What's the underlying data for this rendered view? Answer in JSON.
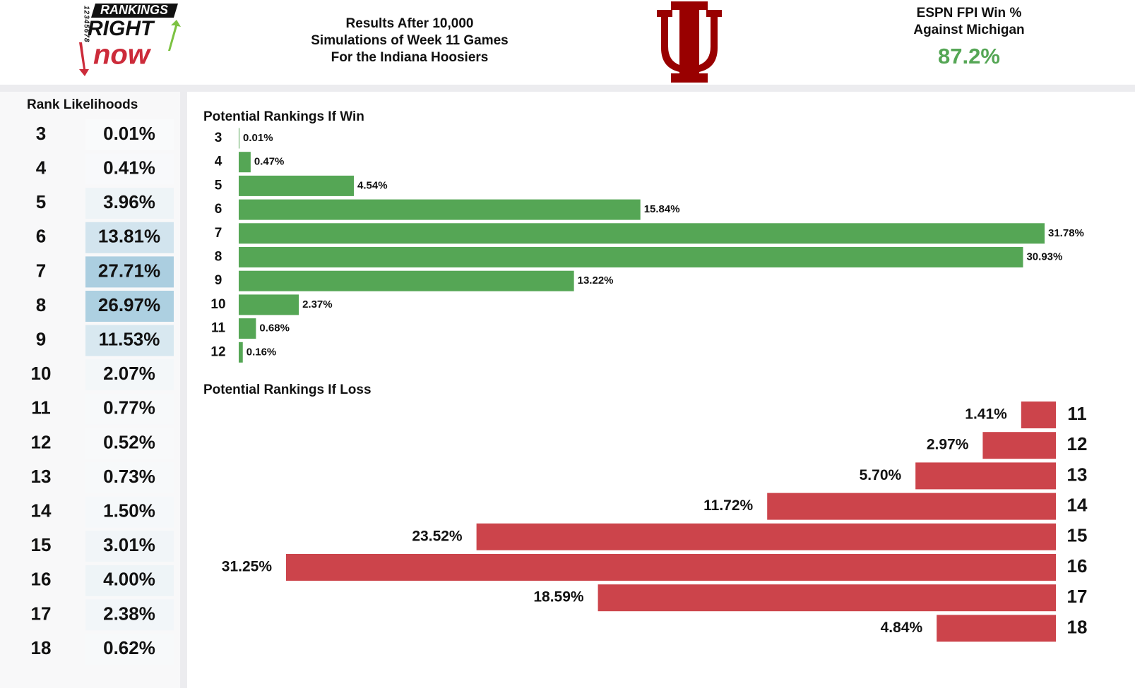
{
  "header": {
    "logo": {
      "top": "RANKINGS",
      "middle": "RIGHT",
      "bottom": "now",
      "digits": "12345678"
    },
    "subtitle_lines": [
      "Results After 10,000",
      "Simulations of Week 11 Games",
      "For the Indiana Hoosiers"
    ],
    "fpi_lines": [
      "ESPN FPI Win %",
      "Against Michigan"
    ],
    "fpi_value": "87.2%"
  },
  "table": {
    "title": "Rank Likelihoods",
    "rows": [
      [
        "3",
        "0.01%"
      ],
      [
        "4",
        "0.41%"
      ],
      [
        "5",
        "3.96%"
      ],
      [
        "6",
        "13.81%"
      ],
      [
        "7",
        "27.71%"
      ],
      [
        "8",
        "26.97%"
      ],
      [
        "9",
        "11.53%"
      ],
      [
        "10",
        "2.07%"
      ],
      [
        "11",
        "0.77%"
      ],
      [
        "12",
        "0.52%"
      ],
      [
        "13",
        "0.73%"
      ],
      [
        "14",
        "1.50%"
      ],
      [
        "15",
        "3.01%"
      ],
      [
        "16",
        "4.00%"
      ],
      [
        "17",
        "2.38%"
      ],
      [
        "18",
        "0.62%"
      ]
    ]
  },
  "chart_data": [
    {
      "type": "bar",
      "title": "Potential Rankings If Win",
      "color": "#55a655",
      "categories": [
        "3",
        "4",
        "5",
        "6",
        "7",
        "8",
        "9",
        "10",
        "11",
        "12"
      ],
      "values": [
        0.01,
        0.47,
        4.54,
        15.84,
        31.78,
        30.93,
        13.22,
        2.37,
        0.68,
        0.16
      ],
      "value_labels": [
        "0.01%",
        "0.47%",
        "4.54%",
        "15.84%",
        "31.78%",
        "30.93%",
        "13.22%",
        "2.37%",
        "0.68%",
        "0.16%"
      ]
    },
    {
      "type": "bar",
      "title": "Potential Rankings If Loss",
      "color": "#cc444b",
      "categories": [
        "11",
        "12",
        "13",
        "14",
        "15",
        "16",
        "17",
        "18"
      ],
      "values": [
        1.41,
        2.97,
        5.7,
        11.72,
        23.52,
        31.25,
        18.59,
        4.84
      ],
      "value_labels": [
        "1.41%",
        "2.97%",
        "5.70%",
        "11.72%",
        "23.52%",
        "31.25%",
        "18.59%",
        "4.84%"
      ]
    }
  ]
}
